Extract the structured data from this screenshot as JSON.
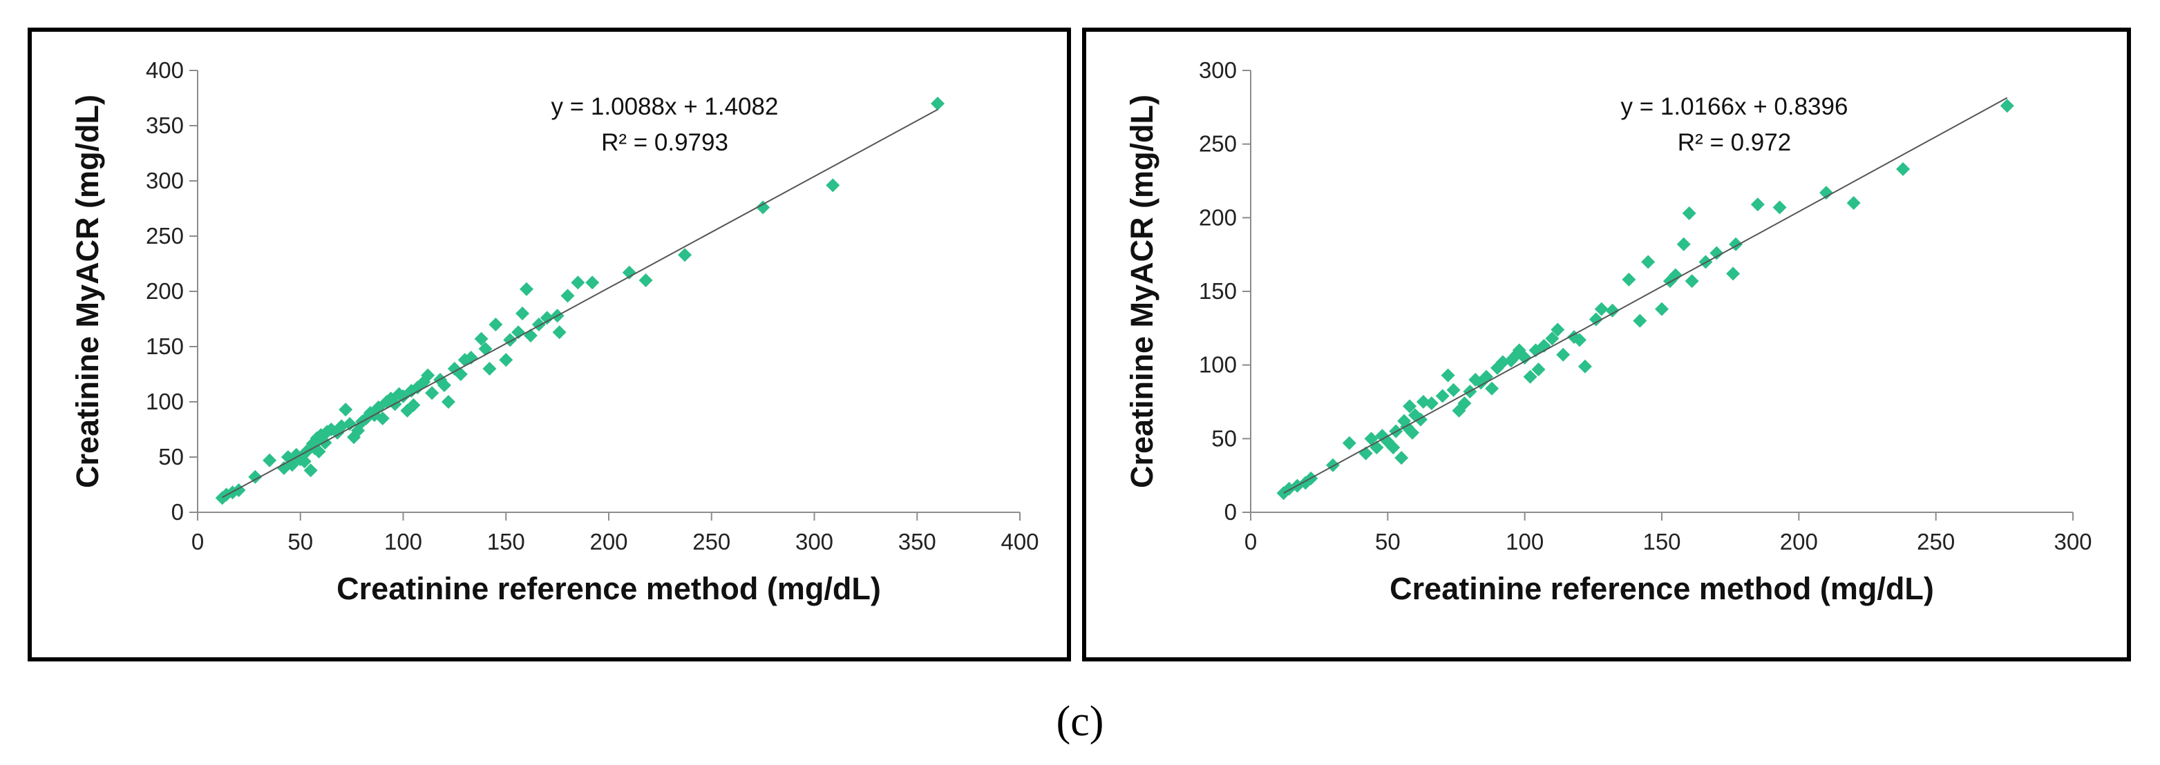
{
  "figure": {
    "panel_label": "(c)"
  },
  "colors": {
    "marker": "#2bbf8a",
    "trendline": "#555555",
    "axis": "#8c8c8c",
    "frame": "#000000"
  },
  "chart_data": [
    {
      "type": "scatter",
      "title": "",
      "xlabel": "Creatinine reference method (mg/dL)",
      "ylabel": "Creatinine MyACR (mg/dL)",
      "xlim": [
        0,
        400
      ],
      "ylim": [
        0,
        400
      ],
      "xticks": [
        0,
        50,
        100,
        150,
        200,
        250,
        300,
        350,
        400
      ],
      "yticks": [
        0,
        50,
        100,
        150,
        200,
        250,
        300,
        350,
        400
      ],
      "trendline": {
        "slope": 1.0088,
        "intercept": 1.4082,
        "x_range": [
          12,
          360
        ]
      },
      "equation": "y = 1.0088x + 1.4082",
      "r_squared": "R² = 0.9793",
      "points": [
        [
          12,
          13
        ],
        [
          14,
          16
        ],
        [
          17,
          18
        ],
        [
          20,
          20
        ],
        [
          28,
          32
        ],
        [
          35,
          47
        ],
        [
          42,
          40
        ],
        [
          44,
          50
        ],
        [
          46,
          43
        ],
        [
          48,
          52
        ],
        [
          50,
          48
        ],
        [
          52,
          46
        ],
        [
          53,
          55
        ],
        [
          55,
          38
        ],
        [
          56,
          62
        ],
        [
          57,
          58
        ],
        [
          58,
          67
        ],
        [
          59,
          55
        ],
        [
          60,
          70
        ],
        [
          62,
          63
        ],
        [
          63,
          73
        ],
        [
          65,
          75
        ],
        [
          68,
          72
        ],
        [
          70,
          78
        ],
        [
          72,
          93
        ],
        [
          74,
          80
        ],
        [
          76,
          68
        ],
        [
          78,
          74
        ],
        [
          80,
          82
        ],
        [
          82,
          85
        ],
        [
          84,
          90
        ],
        [
          86,
          88
        ],
        [
          88,
          95
        ],
        [
          90,
          85
        ],
        [
          92,
          100
        ],
        [
          94,
          103
        ],
        [
          96,
          98
        ],
        [
          98,
          107
        ],
        [
          100,
          105
        ],
        [
          102,
          92
        ],
        [
          104,
          110
        ],
        [
          105,
          97
        ],
        [
          107,
          113
        ],
        [
          110,
          118
        ],
        [
          112,
          124
        ],
        [
          114,
          108
        ],
        [
          118,
          120
        ],
        [
          120,
          115
        ],
        [
          122,
          100
        ],
        [
          125,
          130
        ],
        [
          128,
          125
        ],
        [
          130,
          138
        ],
        [
          133,
          140
        ],
        [
          138,
          157
        ],
        [
          140,
          148
        ],
        [
          142,
          130
        ],
        [
          145,
          170
        ],
        [
          150,
          138
        ],
        [
          152,
          156
        ],
        [
          156,
          163
        ],
        [
          158,
          180
        ],
        [
          160,
          202
        ],
        [
          162,
          160
        ],
        [
          166,
          170
        ],
        [
          170,
          176
        ],
        [
          175,
          178
        ],
        [
          176,
          163
        ],
        [
          180,
          196
        ],
        [
          185,
          208
        ],
        [
          192,
          208
        ],
        [
          210,
          217
        ],
        [
          218,
          210
        ],
        [
          237,
          233
        ],
        [
          275,
          276
        ],
        [
          309,
          296
        ],
        [
          360,
          370
        ]
      ]
    },
    {
      "type": "scatter",
      "title": "",
      "xlabel": "Creatinine reference method (mg/dL)",
      "ylabel": "Creatinine MyACR (mg/dL)",
      "xlim": [
        0,
        300
      ],
      "ylim": [
        0,
        300
      ],
      "xticks": [
        0,
        50,
        100,
        150,
        200,
        250,
        300
      ],
      "yticks": [
        0,
        50,
        100,
        150,
        200,
        250,
        300
      ],
      "trendline": {
        "slope": 1.0166,
        "intercept": 0.8396,
        "x_range": [
          12,
          276
        ]
      },
      "equation": "y = 1.0166x + 0.8396",
      "r_squared": "R² = 0.972",
      "points": [
        [
          12,
          13
        ],
        [
          14,
          16
        ],
        [
          17,
          18
        ],
        [
          20,
          20
        ],
        [
          22,
          23
        ],
        [
          30,
          32
        ],
        [
          36,
          47
        ],
        [
          42,
          40
        ],
        [
          44,
          50
        ],
        [
          46,
          44
        ],
        [
          48,
          52
        ],
        [
          50,
          48
        ],
        [
          52,
          44
        ],
        [
          53,
          55
        ],
        [
          55,
          37
        ],
        [
          56,
          62
        ],
        [
          57,
          58
        ],
        [
          58,
          72
        ],
        [
          59,
          54
        ],
        [
          60,
          66
        ],
        [
          62,
          63
        ],
        [
          63,
          75
        ],
        [
          66,
          74
        ],
        [
          70,
          79
        ],
        [
          72,
          93
        ],
        [
          74,
          83
        ],
        [
          76,
          69
        ],
        [
          78,
          74
        ],
        [
          80,
          82
        ],
        [
          82,
          90
        ],
        [
          84,
          88
        ],
        [
          86,
          92
        ],
        [
          88,
          84
        ],
        [
          90,
          98
        ],
        [
          92,
          102
        ],
        [
          95,
          103
        ],
        [
          97,
          107
        ],
        [
          98,
          110
        ],
        [
          100,
          105
        ],
        [
          102,
          92
        ],
        [
          104,
          110
        ],
        [
          105,
          97
        ],
        [
          107,
          113
        ],
        [
          110,
          118
        ],
        [
          112,
          124
        ],
        [
          114,
          107
        ],
        [
          118,
          119
        ],
        [
          120,
          117
        ],
        [
          122,
          99
        ],
        [
          126,
          131
        ],
        [
          128,
          138
        ],
        [
          132,
          137
        ],
        [
          138,
          158
        ],
        [
          142,
          130
        ],
        [
          145,
          170
        ],
        [
          150,
          138
        ],
        [
          153,
          157
        ],
        [
          155,
          161
        ],
        [
          158,
          182
        ],
        [
          160,
          203
        ],
        [
          161,
          157
        ],
        [
          166,
          170
        ],
        [
          170,
          176
        ],
        [
          176,
          162
        ],
        [
          177,
          182
        ],
        [
          185,
          209
        ],
        [
          193,
          207
        ],
        [
          210,
          217
        ],
        [
          220,
          210
        ],
        [
          238,
          233
        ],
        [
          276,
          276
        ]
      ]
    }
  ]
}
